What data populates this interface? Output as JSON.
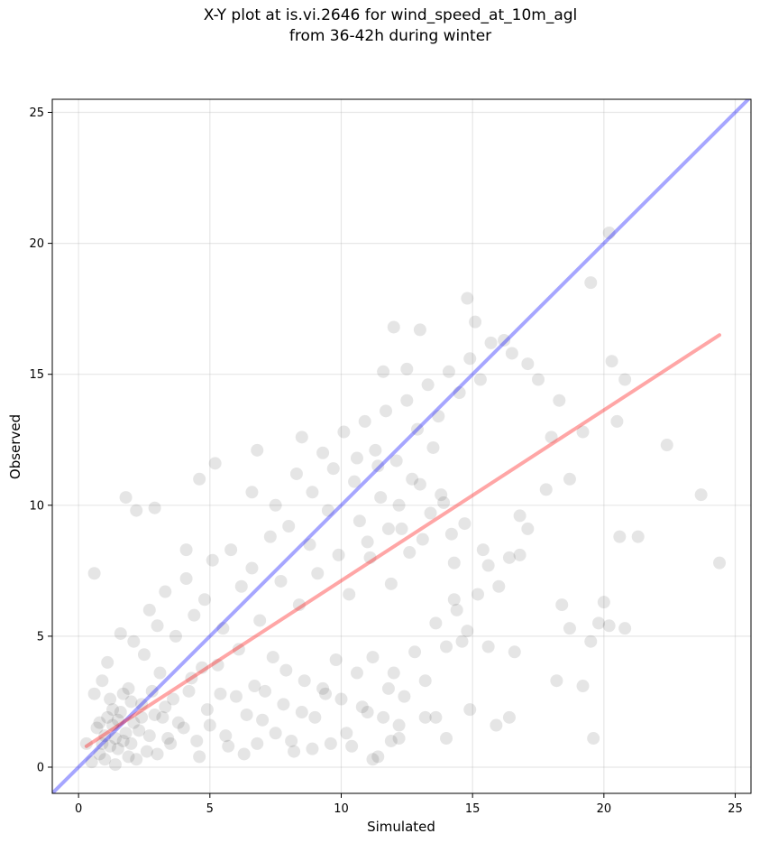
{
  "chart_data": {
    "type": "scatter",
    "title_line1": "X-Y plot at is.vi.2646 for wind_speed_at_10m_agl",
    "title_line2": "from 36-42h during winter",
    "xlabel": "Simulated",
    "ylabel": "Observed",
    "xlim": [
      -1,
      25.6
    ],
    "ylim": [
      -1,
      25.5
    ],
    "xticks": [
      0,
      5,
      10,
      15,
      20,
      25
    ],
    "yticks": [
      0,
      5,
      10,
      15,
      20,
      25
    ],
    "grid": true,
    "colors": {
      "points": "#000000",
      "identity_line": "#0000ff",
      "regression_line": "#ff0000"
    },
    "identity_line": {
      "x": [
        -1,
        25.6
      ],
      "y": [
        -1,
        25.6
      ]
    },
    "regression_line": {
      "x": [
        0.3,
        24.4
      ],
      "y": [
        0.8,
        16.5
      ]
    },
    "series": [
      {
        "points": [
          [
            0.8,
            0.5
          ],
          [
            1.0,
            1.2
          ],
          [
            1.2,
            0.8
          ],
          [
            1.5,
            1.8
          ],
          [
            0.6,
            2.8
          ],
          [
            0.9,
            3.3
          ],
          [
            1.3,
            2.2
          ],
          [
            1.7,
            1.0
          ],
          [
            2.0,
            2.5
          ],
          [
            2.3,
            1.4
          ],
          [
            2.6,
            0.6
          ],
          [
            2.9,
            2.0
          ],
          [
            3.1,
            3.6
          ],
          [
            3.4,
            1.1
          ],
          [
            0.5,
            0.2
          ],
          [
            1.1,
            4.0
          ],
          [
            1.4,
            0.1
          ],
          [
            1.9,
            3.0
          ],
          [
            2.2,
            0.3
          ],
          [
            2.5,
            4.3
          ],
          [
            2.8,
            2.9
          ],
          [
            3.2,
            1.9
          ],
          [
            3.6,
            2.6
          ],
          [
            4.0,
            1.5
          ],
          [
            4.3,
            3.4
          ],
          [
            4.6,
            0.4
          ],
          [
            4.9,
            2.2
          ],
          [
            5.3,
            3.9
          ],
          [
            5.6,
            1.2
          ],
          [
            6.0,
            2.7
          ],
          [
            6.3,
            0.5
          ],
          [
            6.7,
            3.1
          ],
          [
            7.0,
            1.8
          ],
          [
            7.4,
            4.2
          ],
          [
            7.8,
            2.4
          ],
          [
            8.2,
            0.6
          ],
          [
            8.6,
            3.3
          ],
          [
            9.0,
            1.9
          ],
          [
            9.4,
            2.8
          ],
          [
            9.8,
            4.1
          ],
          [
            10.2,
            1.3
          ],
          [
            10.6,
            3.6
          ],
          [
            11.0,
            2.1
          ],
          [
            11.4,
            0.4
          ],
          [
            11.8,
            3.0
          ],
          [
            12.2,
            1.6
          ],
          [
            1.6,
            5.1
          ],
          [
            2.1,
            4.8
          ],
          [
            2.7,
            6.0
          ],
          [
            3.0,
            5.4
          ],
          [
            3.3,
            6.7
          ],
          [
            3.7,
            5.0
          ],
          [
            4.1,
            7.2
          ],
          [
            4.4,
            5.8
          ],
          [
            4.8,
            6.4
          ],
          [
            5.1,
            7.9
          ],
          [
            5.5,
            5.3
          ],
          [
            5.8,
            8.3
          ],
          [
            6.2,
            6.9
          ],
          [
            6.6,
            7.6
          ],
          [
            6.9,
            5.6
          ],
          [
            7.3,
            8.8
          ],
          [
            7.7,
            7.1
          ],
          [
            8.0,
            9.2
          ],
          [
            8.4,
            6.2
          ],
          [
            8.8,
            8.5
          ],
          [
            9.1,
            7.4
          ],
          [
            9.5,
            9.8
          ],
          [
            9.9,
            8.1
          ],
          [
            10.3,
            6.6
          ],
          [
            10.7,
            9.4
          ],
          [
            11.1,
            8.0
          ],
          [
            11.5,
            10.3
          ],
          [
            11.9,
            7.0
          ],
          [
            12.3,
            9.1
          ],
          [
            12.7,
            11.0
          ],
          [
            13.1,
            8.7
          ],
          [
            13.5,
            12.2
          ],
          [
            13.9,
            10.1
          ],
          [
            14.3,
            7.8
          ],
          [
            7.5,
            10.0
          ],
          [
            8.3,
            11.2
          ],
          [
            8.9,
            10.5
          ],
          [
            9.3,
            12.0
          ],
          [
            9.7,
            11.4
          ],
          [
            10.1,
            12.8
          ],
          [
            10.5,
            10.9
          ],
          [
            10.9,
            13.2
          ],
          [
            11.3,
            12.1
          ],
          [
            11.7,
            13.6
          ],
          [
            12.1,
            11.7
          ],
          [
            12.5,
            14.0
          ],
          [
            12.9,
            12.9
          ],
          [
            13.3,
            14.6
          ],
          [
            13.7,
            13.4
          ],
          [
            14.1,
            15.1
          ],
          [
            14.5,
            14.3
          ],
          [
            14.9,
            15.6
          ],
          [
            15.3,
            14.8
          ],
          [
            15.7,
            16.2
          ],
          [
            14.8,
            17.9
          ],
          [
            15.1,
            17.0
          ],
          [
            16.2,
            16.3
          ],
          [
            16.5,
            15.8
          ],
          [
            13.0,
            16.7
          ],
          [
            12.0,
            16.8
          ],
          [
            12.5,
            15.2
          ],
          [
            11.6,
            15.1
          ],
          [
            17.1,
            15.4
          ],
          [
            17.5,
            14.8
          ],
          [
            18.0,
            12.6
          ],
          [
            18.3,
            14.0
          ],
          [
            18.7,
            11.0
          ],
          [
            19.2,
            12.8
          ],
          [
            19.5,
            18.5
          ],
          [
            20.2,
            20.4
          ],
          [
            20.3,
            15.5
          ],
          [
            20.5,
            13.2
          ],
          [
            20.8,
            14.8
          ],
          [
            22.4,
            12.3
          ],
          [
            23.7,
            10.4
          ],
          [
            24.4,
            7.8
          ],
          [
            21.3,
            8.8
          ],
          [
            20.6,
            8.8
          ],
          [
            20.0,
            6.3
          ],
          [
            19.5,
            4.8
          ],
          [
            19.8,
            5.5
          ],
          [
            20.2,
            5.4
          ],
          [
            20.8,
            5.3
          ],
          [
            19.6,
            1.1
          ],
          [
            19.2,
            3.1
          ],
          [
            18.4,
            6.2
          ],
          [
            18.2,
            3.3
          ],
          [
            18.7,
            5.3
          ],
          [
            17.8,
            10.6
          ],
          [
            17.1,
            9.1
          ],
          [
            16.8,
            8.1
          ],
          [
            16.6,
            4.4
          ],
          [
            15.9,
            1.6
          ],
          [
            16.4,
            1.9
          ],
          [
            15.6,
            4.6
          ],
          [
            14.9,
            2.2
          ],
          [
            14.6,
            4.8
          ],
          [
            14.3,
            6.4
          ],
          [
            14.0,
            1.1
          ],
          [
            13.6,
            1.9
          ],
          [
            13.2,
            1.9
          ],
          [
            12.2,
            1.1
          ],
          [
            11.9,
            1.0
          ],
          [
            11.2,
            0.3
          ],
          [
            0.6,
            7.4
          ],
          [
            1.8,
            10.3
          ],
          [
            2.2,
            9.8
          ],
          [
            2.9,
            9.9
          ],
          [
            4.1,
            8.3
          ],
          [
            4.6,
            11.0
          ],
          [
            5.2,
            11.6
          ],
          [
            6.6,
            10.5
          ],
          [
            6.8,
            12.1
          ],
          [
            8.5,
            12.6
          ],
          [
            0.3,
            0.9
          ],
          [
            0.7,
            1.5
          ],
          [
            1.0,
            0.3
          ],
          [
            1.2,
            2.6
          ],
          [
            1.5,
            0.7
          ],
          [
            1.8,
            1.3
          ],
          [
            2.0,
            0.9
          ],
          [
            2.4,
            1.9
          ],
          [
            2.7,
            1.2
          ],
          [
            3.0,
            0.5
          ],
          [
            3.3,
            2.3
          ],
          [
            3.5,
            0.9
          ],
          [
            3.8,
            1.7
          ],
          [
            4.2,
            2.9
          ],
          [
            4.5,
            1.0
          ],
          [
            4.7,
            3.8
          ],
          [
            5.0,
            1.6
          ],
          [
            5.4,
            2.8
          ],
          [
            5.7,
            0.8
          ],
          [
            6.1,
            4.5
          ],
          [
            6.4,
            2.0
          ],
          [
            6.8,
            0.9
          ],
          [
            7.1,
            2.9
          ],
          [
            7.5,
            1.3
          ],
          [
            7.9,
            3.7
          ],
          [
            8.1,
            1.0
          ],
          [
            8.5,
            2.1
          ],
          [
            8.9,
            0.7
          ],
          [
            9.3,
            3.0
          ],
          [
            9.6,
            0.9
          ],
          [
            10.0,
            2.6
          ],
          [
            10.4,
            0.8
          ],
          [
            10.8,
            2.3
          ],
          [
            11.2,
            4.2
          ],
          [
            11.6,
            1.9
          ],
          [
            12.0,
            3.6
          ],
          [
            12.4,
            2.7
          ],
          [
            12.8,
            4.4
          ],
          [
            13.2,
            3.3
          ],
          [
            13.6,
            5.5
          ],
          [
            14.0,
            4.6
          ],
          [
            14.4,
            6.0
          ],
          [
            14.8,
            5.2
          ],
          [
            15.2,
            6.6
          ],
          [
            15.6,
            7.7
          ],
          [
            16.0,
            6.9
          ],
          [
            16.4,
            8.0
          ],
          [
            16.8,
            9.6
          ],
          [
            15.4,
            8.3
          ],
          [
            14.7,
            9.3
          ],
          [
            14.2,
            8.9
          ],
          [
            13.8,
            10.4
          ],
          [
            13.4,
            9.7
          ],
          [
            13.0,
            10.8
          ],
          [
            12.6,
            8.2
          ],
          [
            12.2,
            10.0
          ],
          [
            11.8,
            9.1
          ],
          [
            11.4,
            11.5
          ],
          [
            11.0,
            8.6
          ],
          [
            10.6,
            11.8
          ],
          [
            1.3,
            1.6
          ],
          [
            1.6,
            2.1
          ],
          [
            0.9,
            0.9
          ],
          [
            1.1,
            1.9
          ],
          [
            2.1,
            1.7
          ],
          [
            2.4,
            2.4
          ],
          [
            1.7,
            2.8
          ],
          [
            0.8,
            1.7
          ],
          [
            1.4,
            1.1
          ],
          [
            1.9,
            0.4
          ]
        ]
      }
    ]
  }
}
